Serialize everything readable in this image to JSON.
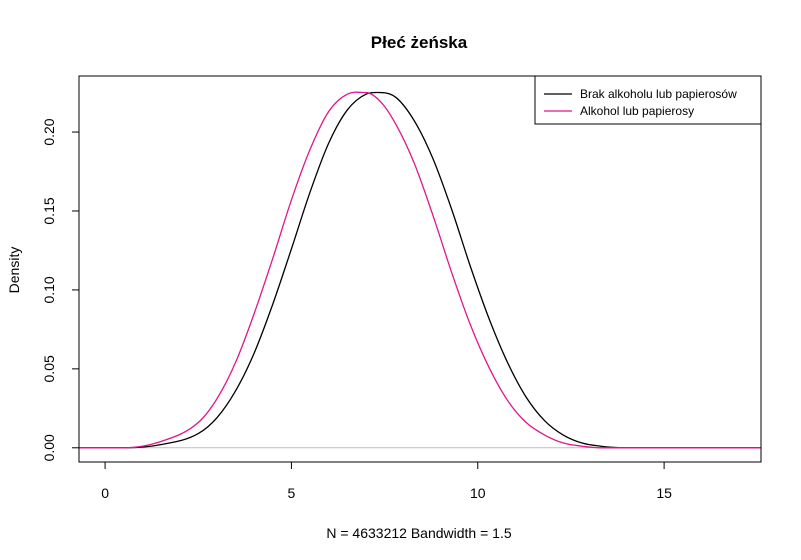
{
  "chart_data": {
    "type": "line",
    "title": "Płeć żeńska",
    "xlabel": "N = 4633212   Bandwidth = 1.5",
    "ylabel": "Density",
    "xlim": [
      -0.7,
      17.6
    ],
    "ylim": [
      -0.009,
      0.2355
    ],
    "x_ticks": [
      0,
      5,
      10,
      15
    ],
    "x_tick_labels": [
      "0",
      "5",
      "10",
      "15"
    ],
    "y_ticks": [
      0.0,
      0.05,
      0.1,
      0.15,
      0.2
    ],
    "y_tick_labels": [
      "0.00",
      "0.05",
      "0.10",
      "0.15",
      "0.20"
    ],
    "baseline": {
      "y": 0,
      "color": "#bebebe"
    },
    "grid": false,
    "legend_position": "top-right",
    "series": [
      {
        "name": "Brak alkoholu lub papierosów",
        "color": "#000000",
        "x": [
          -0.7,
          0.5,
          1.5,
          2.5,
          3.0,
          3.5,
          4.0,
          4.5,
          5.0,
          5.5,
          6.0,
          6.5,
          7.0,
          7.4,
          7.8,
          8.3,
          8.8,
          9.3,
          9.8,
          10.3,
          10.8,
          11.3,
          11.8,
          12.3,
          12.8,
          13.3,
          14.0,
          17.6
        ],
        "y": [
          0.0,
          0.0,
          0.002,
          0.009,
          0.019,
          0.036,
          0.06,
          0.091,
          0.126,
          0.162,
          0.193,
          0.214,
          0.224,
          0.225,
          0.222,
          0.207,
          0.183,
          0.151,
          0.115,
          0.082,
          0.054,
          0.032,
          0.017,
          0.008,
          0.003,
          0.001,
          0.0,
          0.0
        ]
      },
      {
        "name": "Alkohol lub papierosy",
        "color": "#e0168a",
        "x": [
          -0.7,
          0.5,
          1.5,
          2.5,
          3.0,
          3.5,
          4.0,
          4.5,
          5.0,
          5.5,
          6.0,
          6.5,
          7.0,
          7.4,
          7.8,
          8.3,
          8.8,
          9.3,
          9.8,
          10.3,
          10.8,
          11.3,
          11.8,
          12.3,
          12.8,
          13.3,
          14.0,
          17.6
        ],
        "y": [
          0.0,
          0.0,
          0.004,
          0.016,
          0.031,
          0.054,
          0.085,
          0.12,
          0.157,
          0.189,
          0.213,
          0.224,
          0.225,
          0.219,
          0.205,
          0.18,
          0.147,
          0.111,
          0.078,
          0.051,
          0.03,
          0.016,
          0.008,
          0.003,
          0.001,
          0.0,
          0.0,
          0.0
        ]
      }
    ]
  }
}
